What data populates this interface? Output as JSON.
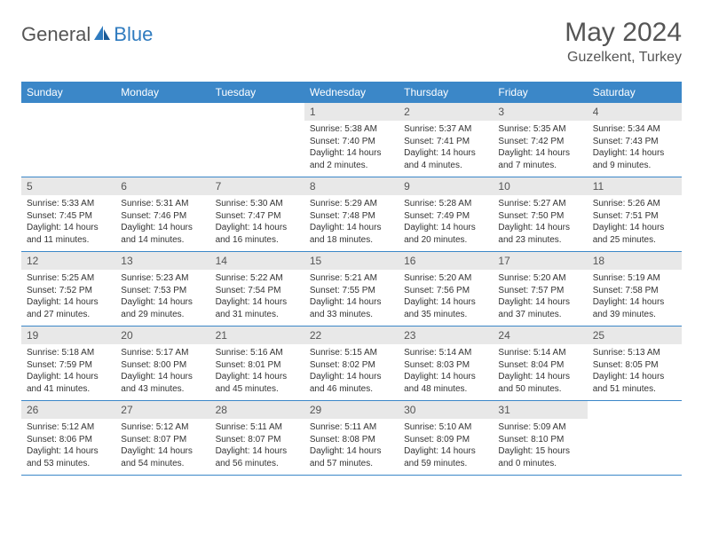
{
  "brand": {
    "text1": "General",
    "text2": "Blue"
  },
  "title": "May 2024",
  "location": "Guzelkent, Turkey",
  "colors": {
    "header_bg": "#3b87c8",
    "header_text": "#ffffff",
    "daynum_bg": "#e8e8e8",
    "text_muted": "#555555",
    "text_body": "#333333",
    "border": "#3b87c8",
    "brand_blue": "#2f7bbf",
    "background": "#ffffff"
  },
  "typography": {
    "title_fontsize": 30,
    "location_fontsize": 16,
    "header_fontsize": 12,
    "daynum_fontsize": 12,
    "body_fontsize": 10,
    "brand_fontsize": 22
  },
  "weekdays": [
    "Sunday",
    "Monday",
    "Tuesday",
    "Wednesday",
    "Thursday",
    "Friday",
    "Saturday"
  ],
  "weeks": [
    [
      {
        "empty": true
      },
      {
        "empty": true
      },
      {
        "empty": true
      },
      {
        "day": "1",
        "sunrise": "Sunrise: 5:38 AM",
        "sunset": "Sunset: 7:40 PM",
        "daylight": "Daylight: 14 hours and 2 minutes."
      },
      {
        "day": "2",
        "sunrise": "Sunrise: 5:37 AM",
        "sunset": "Sunset: 7:41 PM",
        "daylight": "Daylight: 14 hours and 4 minutes."
      },
      {
        "day": "3",
        "sunrise": "Sunrise: 5:35 AM",
        "sunset": "Sunset: 7:42 PM",
        "daylight": "Daylight: 14 hours and 7 minutes."
      },
      {
        "day": "4",
        "sunrise": "Sunrise: 5:34 AM",
        "sunset": "Sunset: 7:43 PM",
        "daylight": "Daylight: 14 hours and 9 minutes."
      }
    ],
    [
      {
        "day": "5",
        "sunrise": "Sunrise: 5:33 AM",
        "sunset": "Sunset: 7:45 PM",
        "daylight": "Daylight: 14 hours and 11 minutes."
      },
      {
        "day": "6",
        "sunrise": "Sunrise: 5:31 AM",
        "sunset": "Sunset: 7:46 PM",
        "daylight": "Daylight: 14 hours and 14 minutes."
      },
      {
        "day": "7",
        "sunrise": "Sunrise: 5:30 AM",
        "sunset": "Sunset: 7:47 PM",
        "daylight": "Daylight: 14 hours and 16 minutes."
      },
      {
        "day": "8",
        "sunrise": "Sunrise: 5:29 AM",
        "sunset": "Sunset: 7:48 PM",
        "daylight": "Daylight: 14 hours and 18 minutes."
      },
      {
        "day": "9",
        "sunrise": "Sunrise: 5:28 AM",
        "sunset": "Sunset: 7:49 PM",
        "daylight": "Daylight: 14 hours and 20 minutes."
      },
      {
        "day": "10",
        "sunrise": "Sunrise: 5:27 AM",
        "sunset": "Sunset: 7:50 PM",
        "daylight": "Daylight: 14 hours and 23 minutes."
      },
      {
        "day": "11",
        "sunrise": "Sunrise: 5:26 AM",
        "sunset": "Sunset: 7:51 PM",
        "daylight": "Daylight: 14 hours and 25 minutes."
      }
    ],
    [
      {
        "day": "12",
        "sunrise": "Sunrise: 5:25 AM",
        "sunset": "Sunset: 7:52 PM",
        "daylight": "Daylight: 14 hours and 27 minutes."
      },
      {
        "day": "13",
        "sunrise": "Sunrise: 5:23 AM",
        "sunset": "Sunset: 7:53 PM",
        "daylight": "Daylight: 14 hours and 29 minutes."
      },
      {
        "day": "14",
        "sunrise": "Sunrise: 5:22 AM",
        "sunset": "Sunset: 7:54 PM",
        "daylight": "Daylight: 14 hours and 31 minutes."
      },
      {
        "day": "15",
        "sunrise": "Sunrise: 5:21 AM",
        "sunset": "Sunset: 7:55 PM",
        "daylight": "Daylight: 14 hours and 33 minutes."
      },
      {
        "day": "16",
        "sunrise": "Sunrise: 5:20 AM",
        "sunset": "Sunset: 7:56 PM",
        "daylight": "Daylight: 14 hours and 35 minutes."
      },
      {
        "day": "17",
        "sunrise": "Sunrise: 5:20 AM",
        "sunset": "Sunset: 7:57 PM",
        "daylight": "Daylight: 14 hours and 37 minutes."
      },
      {
        "day": "18",
        "sunrise": "Sunrise: 5:19 AM",
        "sunset": "Sunset: 7:58 PM",
        "daylight": "Daylight: 14 hours and 39 minutes."
      }
    ],
    [
      {
        "day": "19",
        "sunrise": "Sunrise: 5:18 AM",
        "sunset": "Sunset: 7:59 PM",
        "daylight": "Daylight: 14 hours and 41 minutes."
      },
      {
        "day": "20",
        "sunrise": "Sunrise: 5:17 AM",
        "sunset": "Sunset: 8:00 PM",
        "daylight": "Daylight: 14 hours and 43 minutes."
      },
      {
        "day": "21",
        "sunrise": "Sunrise: 5:16 AM",
        "sunset": "Sunset: 8:01 PM",
        "daylight": "Daylight: 14 hours and 45 minutes."
      },
      {
        "day": "22",
        "sunrise": "Sunrise: 5:15 AM",
        "sunset": "Sunset: 8:02 PM",
        "daylight": "Daylight: 14 hours and 46 minutes."
      },
      {
        "day": "23",
        "sunrise": "Sunrise: 5:14 AM",
        "sunset": "Sunset: 8:03 PM",
        "daylight": "Daylight: 14 hours and 48 minutes."
      },
      {
        "day": "24",
        "sunrise": "Sunrise: 5:14 AM",
        "sunset": "Sunset: 8:04 PM",
        "daylight": "Daylight: 14 hours and 50 minutes."
      },
      {
        "day": "25",
        "sunrise": "Sunrise: 5:13 AM",
        "sunset": "Sunset: 8:05 PM",
        "daylight": "Daylight: 14 hours and 51 minutes."
      }
    ],
    [
      {
        "day": "26",
        "sunrise": "Sunrise: 5:12 AM",
        "sunset": "Sunset: 8:06 PM",
        "daylight": "Daylight: 14 hours and 53 minutes."
      },
      {
        "day": "27",
        "sunrise": "Sunrise: 5:12 AM",
        "sunset": "Sunset: 8:07 PM",
        "daylight": "Daylight: 14 hours and 54 minutes."
      },
      {
        "day": "28",
        "sunrise": "Sunrise: 5:11 AM",
        "sunset": "Sunset: 8:07 PM",
        "daylight": "Daylight: 14 hours and 56 minutes."
      },
      {
        "day": "29",
        "sunrise": "Sunrise: 5:11 AM",
        "sunset": "Sunset: 8:08 PM",
        "daylight": "Daylight: 14 hours and 57 minutes."
      },
      {
        "day": "30",
        "sunrise": "Sunrise: 5:10 AM",
        "sunset": "Sunset: 8:09 PM",
        "daylight": "Daylight: 14 hours and 59 minutes."
      },
      {
        "day": "31",
        "sunrise": "Sunrise: 5:09 AM",
        "sunset": "Sunset: 8:10 PM",
        "daylight": "Daylight: 15 hours and 0 minutes."
      },
      {
        "empty": true
      }
    ]
  ]
}
